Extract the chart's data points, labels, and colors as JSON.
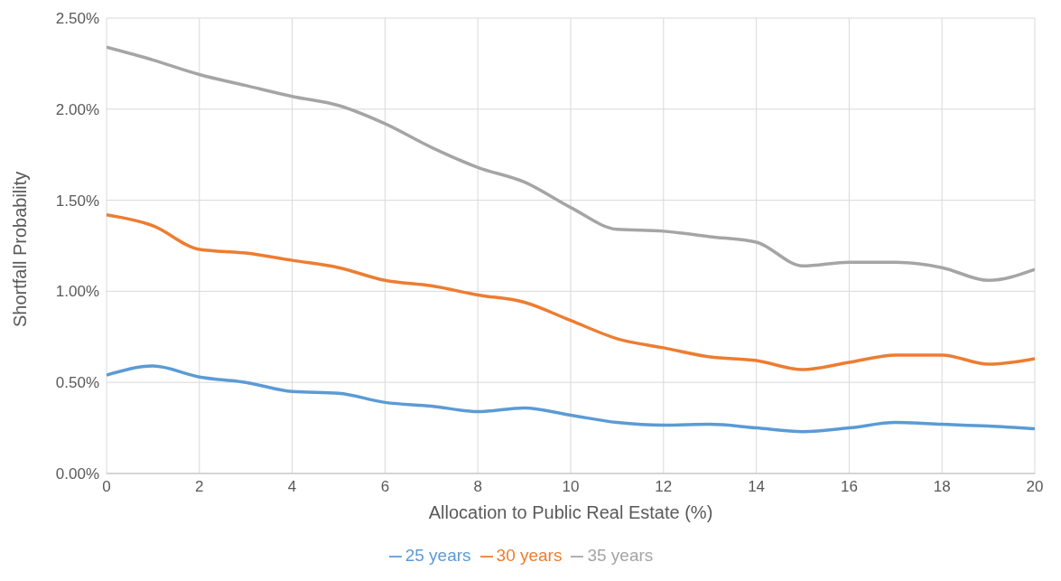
{
  "chart_data": {
    "type": "line",
    "xlabel": "Allocation to Public Real Estate (%)",
    "ylabel": "Shortfall Probability",
    "x": [
      0,
      1,
      2,
      3,
      4,
      5,
      6,
      7,
      8,
      9,
      10,
      11,
      12,
      13,
      14,
      15,
      16,
      17,
      18,
      19,
      20
    ],
    "series": [
      {
        "name": "25 years",
        "color": "#5b9bd5",
        "values": [
          0.54,
          0.59,
          0.53,
          0.5,
          0.45,
          0.44,
          0.39,
          0.37,
          0.34,
          0.36,
          0.32,
          0.28,
          0.265,
          0.27,
          0.25,
          0.23,
          0.25,
          0.28,
          0.27,
          0.26,
          0.245
        ]
      },
      {
        "name": "30 years",
        "color": "#ed7d31",
        "values": [
          1.42,
          1.36,
          1.23,
          1.21,
          1.17,
          1.13,
          1.06,
          1.03,
          0.98,
          0.94,
          0.84,
          0.74,
          0.69,
          0.64,
          0.62,
          0.57,
          0.61,
          0.65,
          0.65,
          0.6,
          0.63
        ]
      },
      {
        "name": "35 years",
        "color": "#a5a5a5",
        "values": [
          2.34,
          2.27,
          2.19,
          2.13,
          2.07,
          2.02,
          1.92,
          1.79,
          1.68,
          1.6,
          1.46,
          1.34,
          1.33,
          1.3,
          1.27,
          1.14,
          1.16,
          1.16,
          1.13,
          1.06,
          1.12
        ]
      }
    ],
    "xlim": [
      0,
      20
    ],
    "xticks": [
      0,
      2,
      4,
      6,
      8,
      10,
      12,
      14,
      16,
      18,
      20
    ],
    "ylim": [
      0,
      2.5
    ],
    "yticks": [
      {
        "value": 0,
        "label": "0.00%"
      },
      {
        "value": 0.5,
        "label": "0.50%"
      },
      {
        "value": 1,
        "label": "1.00%"
      },
      {
        "value": 1.5,
        "label": "1.50%"
      },
      {
        "value": 2,
        "label": "2.00%"
      },
      {
        "value": 2.5,
        "label": "2.50%"
      }
    ],
    "grid": true,
    "legend": "bottom",
    "marker": "none",
    "line_style": "solid"
  }
}
